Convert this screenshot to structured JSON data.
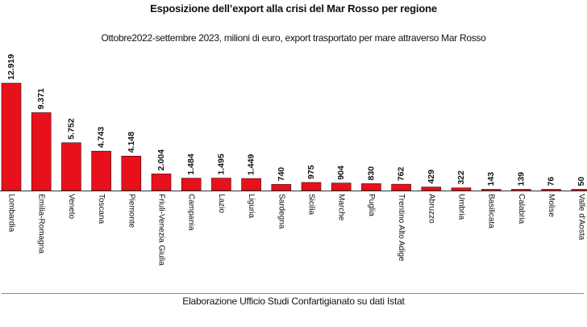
{
  "header": {
    "title": "Esposizione dell’export alla crisi del Mar Rosso per regione",
    "subtitle": "Ottobre2022-settembre 2023, milioni di euro, export trasportato per mare attraverso Mar Rosso"
  },
  "footer": {
    "source": "Elaborazione Ufficio Studi Confartigianato su dati Istat"
  },
  "colors": {
    "bar_fill": "#e8111b",
    "bar_stroke": "#3a0a0a",
    "axis": "#333333"
  },
  "chart_data": {
    "type": "bar",
    "title": "Esposizione dell’export alla crisi del Mar Rosso per regione",
    "subtitle": "Ottobre2022-settembre 2023, milioni di euro, export trasportato per mare attraverso Mar Rosso",
    "xlabel": "",
    "ylabel": "",
    "grid": false,
    "legend": "none",
    "ylim": [
      0,
      12919
    ],
    "categories": [
      "Lombardia",
      "Emilia-Romagna",
      "Veneto",
      "Toscana",
      "Piemonte",
      "Friuli-Venezia Giulia",
      "Campania",
      "Lazio",
      "Liguria",
      "Sardegna",
      "Sicilia",
      "Marche",
      "Puglia",
      "Trentino Alto Adige",
      "Abruzzo",
      "Umbria",
      "Basilicata",
      "Calabria",
      "Molise",
      "Valle d'Aosta"
    ],
    "values": [
      12919,
      9371,
      5752,
      4743,
      4148,
      2004,
      1484,
      1495,
      1449,
      740,
      975,
      904,
      830,
      762,
      429,
      322,
      143,
      139,
      76,
      50
    ],
    "value_labels": [
      "12.919",
      "9.371",
      "5.752",
      "4.743",
      "4.148",
      "2.004",
      "1.484",
      "1.495",
      "1.449",
      "740",
      "975",
      "904",
      "830",
      "762",
      "429",
      "322",
      "143",
      "139",
      "76",
      "50"
    ]
  }
}
